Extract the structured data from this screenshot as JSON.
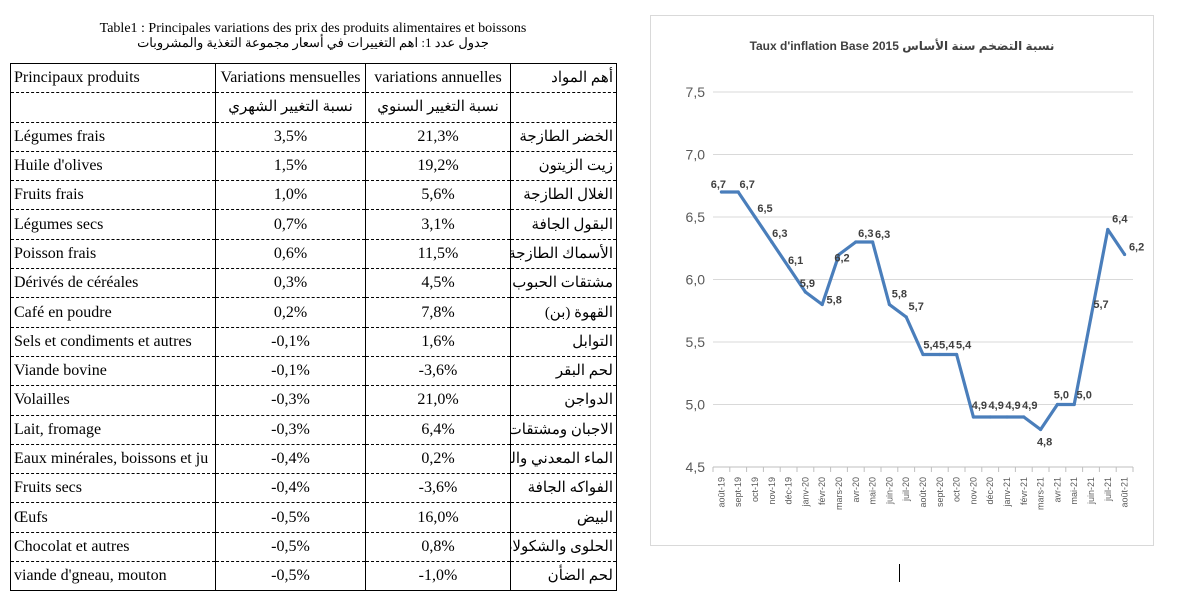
{
  "table": {
    "title_fr": "Table1 : Principales variations des prix des produits alimentaires et boissons",
    "title_ar": "جدول عدد 1: اهم التغييرات في أسعار مجموعة التغذية والمشروبات",
    "headers": {
      "product_fr": "Principaux produits",
      "monthly_fr": "Variations mensuelles",
      "annual_fr": "variations annuelles",
      "product_ar": "أهم المواد",
      "monthly_ar": "نسبة التغيير الشهري",
      "annual_ar": "نسبة التغيير السنوي"
    },
    "rows": [
      {
        "product_fr": "Légumes frais",
        "monthly": "3,5%",
        "annual": "21,3%",
        "product_ar": "الخضر الطازجة"
      },
      {
        "product_fr": "Huile d'olives",
        "monthly": "1,5%",
        "annual": "19,2%",
        "product_ar": "زيت الزيتون"
      },
      {
        "product_fr": "Fruits frais",
        "monthly": "1,0%",
        "annual": "5,6%",
        "product_ar": "الغلال الطازجة"
      },
      {
        "product_fr": "Légumes secs",
        "monthly": "0,7%",
        "annual": "3,1%",
        "product_ar": "البقول الجافة"
      },
      {
        "product_fr": "Poisson frais",
        "monthly": "0,6%",
        "annual": "11,5%",
        "product_ar": "الأسماك الطازجة"
      },
      {
        "product_fr": "Dérivés de céréales",
        "monthly": "0,3%",
        "annual": "4,5%",
        "product_ar": "مشتقات الحبوب"
      },
      {
        "product_fr": "Café en poudre",
        "monthly": "0,2%",
        "annual": "7,8%",
        "product_ar": "القهوة (بن)"
      },
      {
        "product_fr": "Sels et condiments et autres",
        "monthly": "-0,1%",
        "annual": "1,6%",
        "product_ar": "التوابل"
      },
      {
        "product_fr": "Viande bovine",
        "monthly": "-0,1%",
        "annual": "-3,6%",
        "product_ar": "لحم البقر"
      },
      {
        "product_fr": "Volailles",
        "monthly": "-0,3%",
        "annual": "21,0%",
        "product_ar": "الدواجن"
      },
      {
        "product_fr": "Lait, fromage",
        "monthly": "-0,3%",
        "annual": "6,4%",
        "product_ar": "الاجبان ومشتقات ال"
      },
      {
        "product_fr": "Eaux minérales, boissons et ju",
        "monthly": "-0,4%",
        "annual": "0,2%",
        "product_ar": "الماء المعدني والمش"
      },
      {
        "product_fr": "Fruits secs",
        "monthly": "-0,4%",
        "annual": "-3,6%",
        "product_ar": "الفواكه الجافة"
      },
      {
        "product_fr": "Œufs",
        "monthly": "-0,5%",
        "annual": "16,0%",
        "product_ar": "البيض"
      },
      {
        "product_fr": "Chocolat et autres",
        "monthly": "-0,5%",
        "annual": "0,8%",
        "product_ar": "الحلوى والشكولاطة"
      },
      {
        "product_fr": "viande d'gneau, mouton",
        "monthly": "-0,5%",
        "annual": "-1,0%",
        "product_ar": "لحم الضأن"
      }
    ]
  },
  "chart_data": {
    "type": "line",
    "title": "Taux d'inflation Base 2015 نسبة التضخم سنة الأساس",
    "xlabel": "",
    "ylabel": "",
    "x": [
      "août-19",
      "sept-19",
      "oct-19",
      "nov-19",
      "déc-19",
      "janv-20",
      "févr-20",
      "mars-20",
      "avr-20",
      "mai-20",
      "juin-20",
      "juil-20",
      "août-20",
      "sept-20",
      "oct-20",
      "nov-20",
      "déc-20",
      "janv-21",
      "févr-21",
      "mars-21",
      "avr-21",
      "mai-21",
      "juin-21",
      "juil-21",
      "août-21"
    ],
    "series": [
      {
        "values": [
          6.7,
          6.7,
          6.5,
          6.3,
          6.1,
          5.9,
          5.8,
          6.2,
          6.3,
          6.3,
          5.8,
          5.7,
          5.4,
          5.4,
          5.4,
          4.9,
          4.9,
          4.9,
          4.9,
          4.8,
          5.0,
          5.0,
          5.7,
          6.4,
          6.2
        ],
        "labels": [
          "6,7",
          "6,7",
          "6,5",
          "6,3",
          "6,1",
          "5,9",
          "5,8",
          "6,2",
          "6,3",
          "6,3",
          "5,8",
          "5,7",
          "5,4",
          "5,4",
          "5,4",
          "4,9",
          "4,9",
          "4,9",
          "4,9",
          "4,8",
          "5,0",
          "5,0",
          "5,7",
          "6,4",
          "6,2"
        ],
        "color": "#4a7ebb"
      }
    ],
    "ylim": [
      4.5,
      7.5
    ],
    "yticks": [
      "4,5",
      "5,0",
      "5,5",
      "6,0",
      "6,5",
      "7,0",
      "7,5"
    ],
    "grid": true,
    "colors": {
      "line": "#4a7ebb",
      "grid": "#d9d9d9",
      "axis_text": "#595959"
    }
  }
}
